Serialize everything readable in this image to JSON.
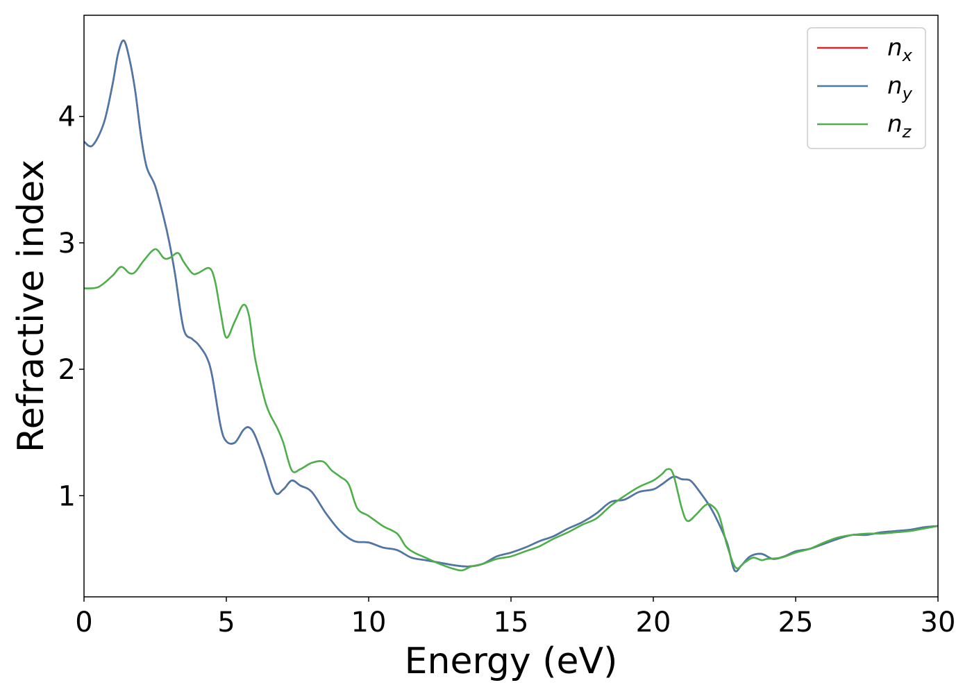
{
  "chart_data": {
    "type": "line",
    "title": "",
    "xlabel": "Energy (eV)",
    "ylabel": "Refractive index",
    "xlim": [
      0,
      30
    ],
    "ylim": [
      0.2,
      4.8
    ],
    "xticks": [
      0,
      5,
      10,
      15,
      20,
      25,
      30
    ],
    "yticks": [
      1,
      2,
      3,
      4
    ],
    "grid": false,
    "legend_position": "top-right",
    "series": [
      {
        "name": "n",
        "subscript": "x",
        "color": "#d62728",
        "x": [
          0,
          0.3,
          0.7,
          1.0,
          1.2,
          1.4,
          1.6,
          1.8,
          2.0,
          2.2,
          2.5,
          2.8,
          3.0,
          3.2,
          3.5,
          3.8,
          4.0,
          4.3,
          4.5,
          4.8,
          5.0,
          5.3,
          5.6,
          5.8,
          6.0,
          6.3,
          6.7,
          7.0,
          7.3,
          7.6,
          8.0,
          8.5,
          9.0,
          9.5,
          10.0,
          10.5,
          11.0,
          11.5,
          12.0,
          12.5,
          13.0,
          13.5,
          14.0,
          14.5,
          15.0,
          15.5,
          16.0,
          16.5,
          17.0,
          17.5,
          18.0,
          18.5,
          19.0,
          19.5,
          20.0,
          20.3,
          20.7,
          21.0,
          21.3,
          21.6,
          22.0,
          22.3,
          22.6,
          22.85,
          23.1,
          23.4,
          23.8,
          24.2,
          24.6,
          25.0,
          25.5,
          26.0,
          26.5,
          27.0,
          27.5,
          28.0,
          28.5,
          29.0,
          29.5,
          30.0
        ],
        "values": [
          3.8,
          3.77,
          3.95,
          4.25,
          4.5,
          4.6,
          4.45,
          4.2,
          3.85,
          3.6,
          3.45,
          3.2,
          3.0,
          2.75,
          2.32,
          2.24,
          2.2,
          2.1,
          1.95,
          1.55,
          1.43,
          1.42,
          1.52,
          1.54,
          1.48,
          1.3,
          1.03,
          1.05,
          1.12,
          1.08,
          1.03,
          0.86,
          0.72,
          0.64,
          0.63,
          0.59,
          0.57,
          0.51,
          0.49,
          0.47,
          0.45,
          0.44,
          0.46,
          0.52,
          0.55,
          0.59,
          0.64,
          0.68,
          0.74,
          0.79,
          0.86,
          0.95,
          0.97,
          1.03,
          1.05,
          1.09,
          1.15,
          1.13,
          1.12,
          1.04,
          0.91,
          0.78,
          0.62,
          0.41,
          0.45,
          0.52,
          0.54,
          0.5,
          0.52,
          0.56,
          0.58,
          0.62,
          0.66,
          0.69,
          0.69,
          0.71,
          0.72,
          0.73,
          0.75,
          0.76
        ]
      },
      {
        "name": "n",
        "subscript": "y",
        "color": "#4a78a8",
        "x": [
          0,
          0.3,
          0.7,
          1.0,
          1.2,
          1.4,
          1.6,
          1.8,
          2.0,
          2.2,
          2.5,
          2.8,
          3.0,
          3.2,
          3.5,
          3.8,
          4.0,
          4.3,
          4.5,
          4.8,
          5.0,
          5.3,
          5.6,
          5.8,
          6.0,
          6.3,
          6.7,
          7.0,
          7.3,
          7.6,
          8.0,
          8.5,
          9.0,
          9.5,
          10.0,
          10.5,
          11.0,
          11.5,
          12.0,
          12.5,
          13.0,
          13.5,
          14.0,
          14.5,
          15.0,
          15.5,
          16.0,
          16.5,
          17.0,
          17.5,
          18.0,
          18.5,
          19.0,
          19.5,
          20.0,
          20.3,
          20.7,
          21.0,
          21.3,
          21.6,
          22.0,
          22.3,
          22.6,
          22.85,
          23.1,
          23.4,
          23.8,
          24.2,
          24.6,
          25.0,
          25.5,
          26.0,
          26.5,
          27.0,
          27.5,
          28.0,
          28.5,
          29.0,
          29.5,
          30.0
        ],
        "values": [
          3.8,
          3.77,
          3.95,
          4.25,
          4.5,
          4.6,
          4.45,
          4.2,
          3.85,
          3.6,
          3.45,
          3.2,
          3.0,
          2.75,
          2.32,
          2.24,
          2.2,
          2.1,
          1.95,
          1.55,
          1.43,
          1.42,
          1.52,
          1.54,
          1.48,
          1.3,
          1.03,
          1.05,
          1.12,
          1.08,
          1.03,
          0.86,
          0.72,
          0.64,
          0.63,
          0.59,
          0.57,
          0.51,
          0.49,
          0.47,
          0.45,
          0.44,
          0.46,
          0.52,
          0.55,
          0.59,
          0.64,
          0.68,
          0.74,
          0.79,
          0.86,
          0.95,
          0.97,
          1.03,
          1.05,
          1.09,
          1.15,
          1.13,
          1.12,
          1.04,
          0.91,
          0.78,
          0.62,
          0.41,
          0.45,
          0.52,
          0.54,
          0.5,
          0.52,
          0.56,
          0.58,
          0.62,
          0.66,
          0.69,
          0.69,
          0.71,
          0.72,
          0.73,
          0.75,
          0.76
        ]
      },
      {
        "name": "n",
        "subscript": "z",
        "color": "#4daf4a",
        "x": [
          0,
          0.5,
          1.0,
          1.3,
          1.6,
          1.8,
          2.1,
          2.5,
          2.8,
          3.0,
          3.3,
          3.5,
          3.8,
          4.0,
          4.4,
          4.6,
          4.8,
          5.0,
          5.3,
          5.6,
          5.8,
          6.0,
          6.3,
          6.5,
          6.8,
          7.0,
          7.3,
          7.6,
          8.0,
          8.4,
          8.7,
          9.0,
          9.3,
          9.6,
          10.0,
          10.5,
          11.0,
          11.3,
          11.6,
          12.0,
          12.5,
          13.0,
          13.3,
          13.6,
          14.0,
          14.5,
          15.0,
          15.5,
          16.0,
          16.5,
          17.0,
          17.5,
          18.0,
          18.5,
          19.0,
          19.5,
          20.0,
          20.3,
          20.5,
          20.7,
          21.0,
          21.2,
          21.5,
          21.8,
          22.0,
          22.3,
          22.6,
          22.9,
          23.2,
          23.5,
          23.8,
          24.0,
          24.5,
          25.0,
          25.5,
          26.0,
          26.5,
          27.0,
          27.5,
          28.0,
          28.5,
          29.0,
          29.5,
          30.0
        ],
        "values": [
          2.64,
          2.65,
          2.74,
          2.81,
          2.76,
          2.77,
          2.86,
          2.95,
          2.88,
          2.88,
          2.92,
          2.85,
          2.76,
          2.76,
          2.8,
          2.7,
          2.45,
          2.25,
          2.38,
          2.51,
          2.42,
          2.1,
          1.8,
          1.66,
          1.53,
          1.42,
          1.2,
          1.21,
          1.26,
          1.27,
          1.2,
          1.15,
          1.09,
          0.9,
          0.84,
          0.76,
          0.7,
          0.6,
          0.55,
          0.51,
          0.46,
          0.42,
          0.41,
          0.44,
          0.46,
          0.5,
          0.52,
          0.56,
          0.6,
          0.66,
          0.71,
          0.77,
          0.82,
          0.92,
          1.0,
          1.07,
          1.12,
          1.17,
          1.21,
          1.17,
          0.9,
          0.8,
          0.85,
          0.92,
          0.93,
          0.85,
          0.6,
          0.43,
          0.47,
          0.51,
          0.49,
          0.5,
          0.51,
          0.55,
          0.58,
          0.63,
          0.67,
          0.69,
          0.7,
          0.7,
          0.71,
          0.72,
          0.74,
          0.76
        ]
      }
    ]
  }
}
